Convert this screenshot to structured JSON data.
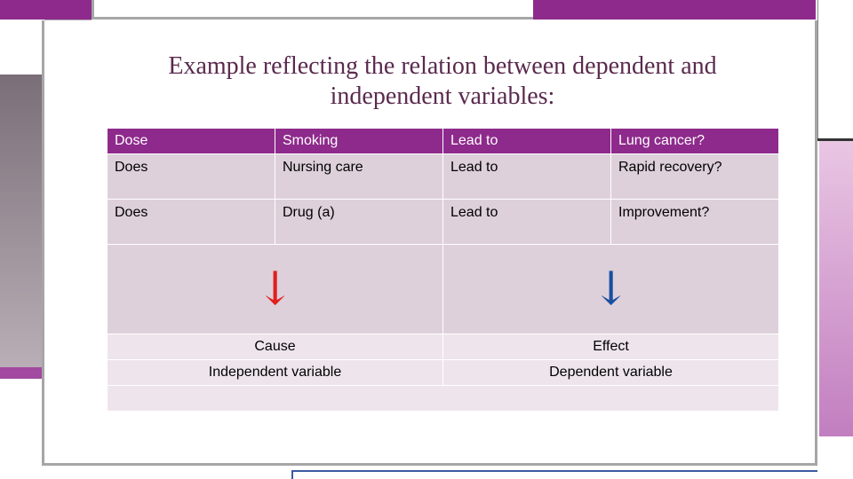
{
  "slide": {
    "title": "Example reflecting  the relation between  dependent and independent variables:"
  },
  "table": {
    "header": [
      "Dose",
      "Smoking",
      "Lead to",
      "Lung cancer?"
    ],
    "rows": [
      [
        "Does",
        "Nursing care",
        "Lead to",
        "Rapid recovery?"
      ],
      [
        "Does",
        "Drug (a)",
        "Lead to",
        "Improvement?"
      ]
    ],
    "cause_label": "Cause",
    "effect_label": "Effect",
    "independent_label": "Independent variable",
    "dependent_label": "Dependent variable"
  },
  "colors": {
    "accent_purple": "#8e2a8c",
    "cell_bg": "#ddd0db",
    "cause_red": "#e0201c",
    "effect_blue": "#1a4fa0",
    "title_color": "#5a2a4e"
  },
  "icons": {
    "cause_arrow": "down-arrow-icon",
    "effect_arrow": "down-arrow-icon"
  }
}
